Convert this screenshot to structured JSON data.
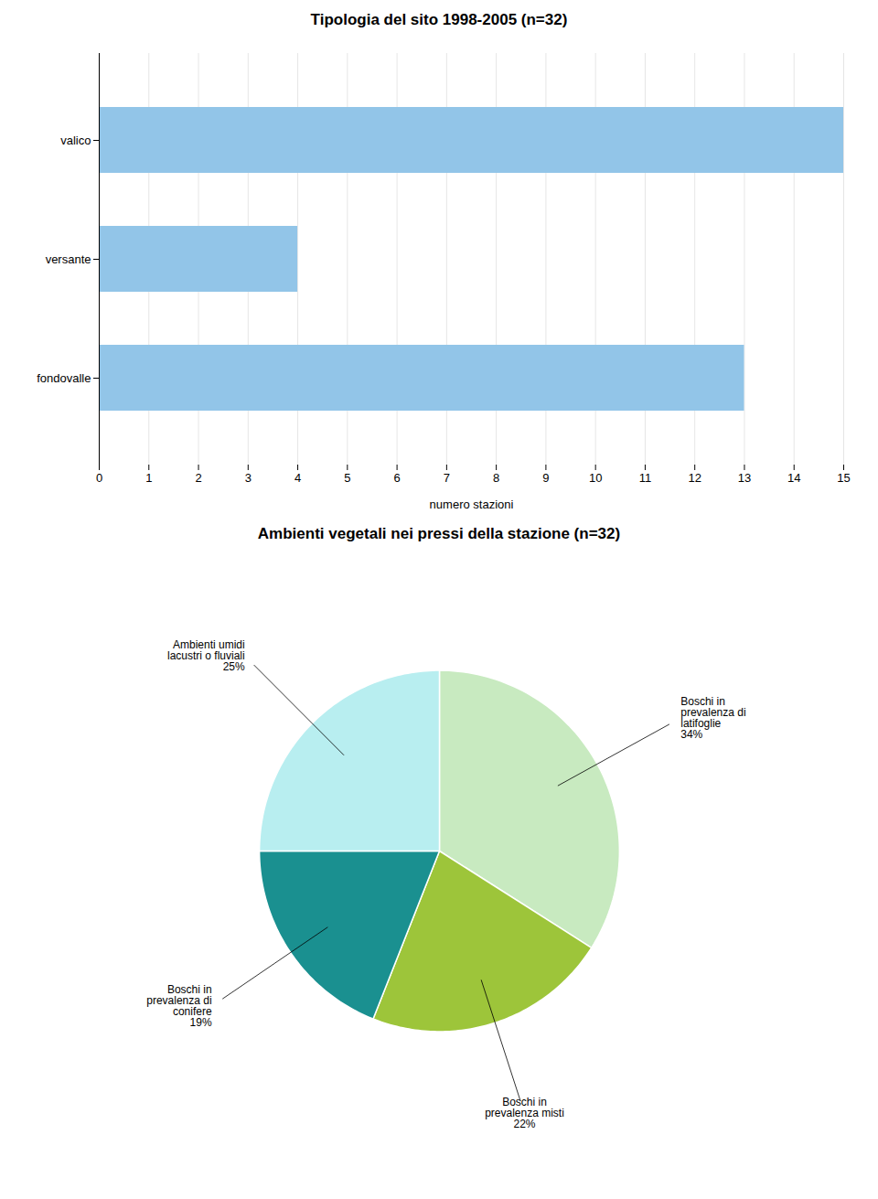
{
  "chart_data": [
    {
      "type": "bar",
      "title": "Tipologia del sito 1998-2005 (n=32)",
      "orientation": "horizontal",
      "categories": [
        "valico",
        "versante",
        "fondovalle"
      ],
      "values": [
        15,
        4,
        13
      ],
      "color": "#92C5E8",
      "xlabel": "numero stazioni",
      "xlim": [
        0,
        15
      ],
      "xticks": [
        0,
        1,
        2,
        3,
        4,
        5,
        6,
        7,
        8,
        9,
        10,
        11,
        12,
        13,
        14,
        15
      ],
      "grid": true
    },
    {
      "type": "pie",
      "title": "Ambienti vegetali nei pressi della stazione (n=32)",
      "categories": [
        "Boschi in\nprevalenza di\nlatifoglie",
        "Boschi in\nprevalenza misti",
        "Boschi in\nprevalenza di\nconifere",
        "Ambienti umidi\nlacustri o fluviali"
      ],
      "values": [
        34,
        22,
        19,
        25
      ],
      "value_labels": [
        "34%",
        "22%",
        "19%",
        "25%"
      ],
      "data_labels": true,
      "colors": [
        "#C8EAC0",
        "#9DC53A",
        "#1A9090",
        "#B8EEF0"
      ]
    }
  ]
}
